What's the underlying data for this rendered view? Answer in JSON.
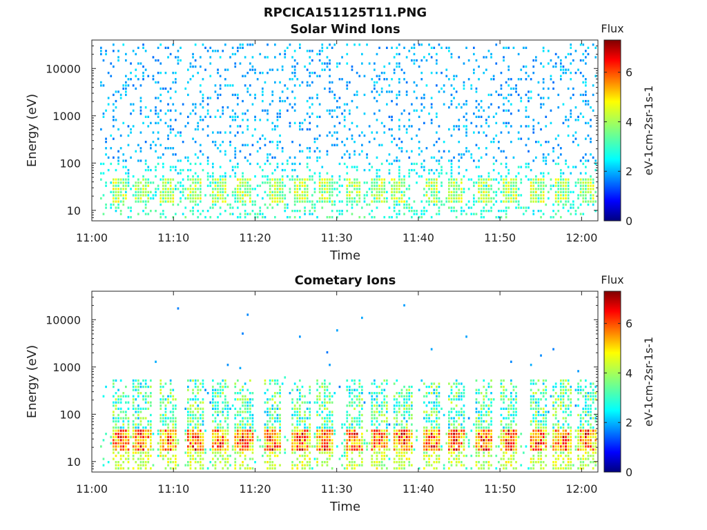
{
  "figure": {
    "title": "RPCICA151125T11.PNG"
  },
  "chart_data": [
    {
      "type": "heatmap",
      "title": "Solar Wind Ions",
      "xlabel": "Time",
      "ylabel": "Energy (eV)",
      "x_ticks": [
        "11:00",
        "11:10",
        "11:20",
        "11:30",
        "11:40",
        "11:50",
        "12:00"
      ],
      "x_range_minutes": [
        0,
        62
      ],
      "y_ticks": [
        10,
        100,
        1000,
        10000
      ],
      "y_scale": "log",
      "y_range": [
        6,
        40000
      ],
      "colorbar": {
        "label": "Flux",
        "units": "eV-1cm-2sr-1s-1",
        "ticks": [
          0,
          2,
          4,
          6
        ],
        "range": [
          0,
          7.3
        ],
        "colormap": "jet"
      },
      "pulse_times_minutes": [
        3.3,
        6.0,
        9.0,
        12.5,
        15.5,
        18.5,
        22.5,
        25.5,
        28.5,
        32.0,
        35.0,
        37.5,
        41.5,
        44.5,
        48.0,
        51.0,
        54.5,
        57.5,
        60.5
      ],
      "description_of_bands": {
        "sparse_high_energy_flux": [
          1.5,
          3.0
        ],
        "low_energy_pulse_flux": [
          3.0,
          5.0
        ]
      }
    },
    {
      "type": "heatmap",
      "title": "Cometary Ions",
      "xlabel": "Time",
      "ylabel": "Energy (eV)",
      "x_ticks": [
        "11:00",
        "11:10",
        "11:20",
        "11:30",
        "11:40",
        "11:50",
        "12:00"
      ],
      "x_range_minutes": [
        0,
        62
      ],
      "y_ticks": [
        10,
        100,
        1000,
        10000
      ],
      "y_scale": "log",
      "y_range": [
        6,
        40000
      ],
      "colorbar": {
        "label": "Flux",
        "units": "eV-1cm-2sr-1s-1",
        "ticks": [
          0,
          2,
          4,
          6
        ],
        "range": [
          0,
          7.3
        ],
        "colormap": "jet"
      },
      "pulse_times_minutes": [
        3.5,
        6.0,
        9.3,
        12.5,
        15.5,
        18.5,
        22.0,
        25.5,
        28.5,
        32.0,
        35.0,
        38.0,
        41.5,
        44.5,
        48.0,
        51.0,
        54.5,
        57.5,
        60.5
      ],
      "description_of_bands": {
        "core_flux": [
          5.0,
          7.3
        ],
        "halo_flux": [
          2.0,
          4.5
        ]
      }
    }
  ]
}
